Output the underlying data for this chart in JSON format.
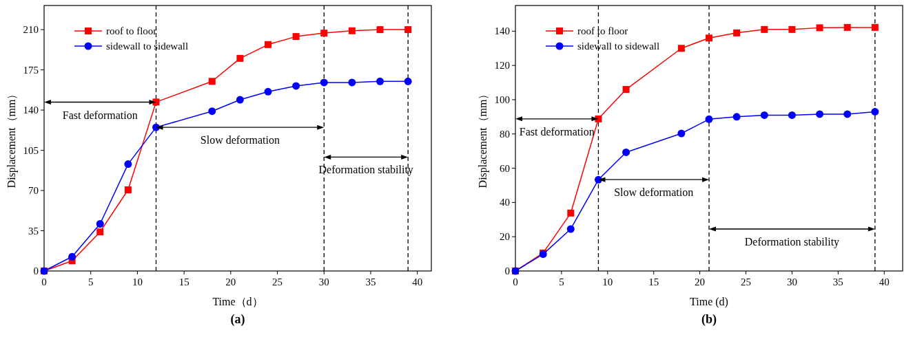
{
  "chart_data": [
    {
      "type": "line",
      "title": "(a)",
      "xlabel": "Time（d）",
      "ylabel": "Displacement（mm）",
      "x": [
        0,
        3,
        6,
        9,
        12,
        18,
        21,
        24,
        27,
        30,
        33,
        36,
        39
      ],
      "series": [
        {
          "name": "roof to floor",
          "color": "#ff0000",
          "marker": "square",
          "values": [
            0,
            8.8,
            34,
            70.6,
            147,
            165,
            185,
            197,
            204,
            207,
            209,
            210,
            210
          ]
        },
        {
          "name": "sidewall to sidewall",
          "color": "#0000ff",
          "marker": "circle",
          "values": [
            0,
            12.4,
            41,
            93,
            125,
            139,
            149,
            156,
            161,
            164,
            164,
            165,
            165
          ]
        }
      ],
      "xlim": [
        0,
        41.5
      ],
      "xticks": [
        0,
        5,
        10,
        15,
        20,
        25,
        30,
        35,
        40
      ],
      "ylim": [
        0,
        231
      ],
      "yticks": [
        0,
        35,
        70,
        105,
        140,
        175,
        210
      ],
      "grid": false,
      "legend": "top left",
      "line_style": "solid",
      "ref_lines": [
        {
          "axis": "x",
          "value": 12,
          "line_style": "dashed",
          "color": "#000000"
        },
        {
          "axis": "x",
          "value": 30,
          "line_style": "dashed",
          "color": "#000000"
        },
        {
          "axis": "x",
          "value": 39,
          "line_style": "dashed",
          "color": "#000000"
        }
      ],
      "annotations": [
        "Fast deformation",
        "Slow deformation",
        "Deformation stability"
      ]
    },
    {
      "type": "line",
      "title": "(b)",
      "xlabel": "Time (d)",
      "ylabel": "Displacement（mm）",
      "x": [
        0,
        3,
        6,
        9,
        12,
        18,
        21,
        24,
        27,
        30,
        33,
        36,
        39
      ],
      "series": [
        {
          "name": "roof to floor",
          "color": "#ff0000",
          "marker": "square",
          "values": [
            0,
            10.5,
            33.8,
            88.8,
            106,
            130,
            136,
            139,
            141,
            141,
            142,
            142.2,
            142.2
          ]
        },
        {
          "name": "sidewall to sidewall",
          "color": "#0000ff",
          "marker": "circle",
          "values": [
            0,
            9.8,
            24.5,
            53.3,
            69.3,
            80.3,
            88.6,
            90,
            91,
            91,
            91.6,
            91.6,
            93
          ]
        }
      ],
      "xlim": [
        0,
        42
      ],
      "xticks": [
        0,
        5,
        10,
        15,
        20,
        25,
        30,
        35,
        40
      ],
      "ylim": [
        0,
        155
      ],
      "yticks": [
        0,
        20,
        40,
        60,
        80,
        100,
        120,
        140
      ],
      "grid": false,
      "legend": "top left",
      "line_style": "solid",
      "ref_lines": [
        {
          "axis": "x",
          "value": 9,
          "line_style": "dashed",
          "color": "#000000"
        },
        {
          "axis": "x",
          "value": 21,
          "line_style": "dashed",
          "color": "#000000"
        },
        {
          "axis": "x",
          "value": 39,
          "line_style": "dashed",
          "color": "#000000"
        }
      ],
      "annotations": [
        "Fast deformation",
        "Slow deformation",
        "Deformation stability"
      ]
    }
  ]
}
